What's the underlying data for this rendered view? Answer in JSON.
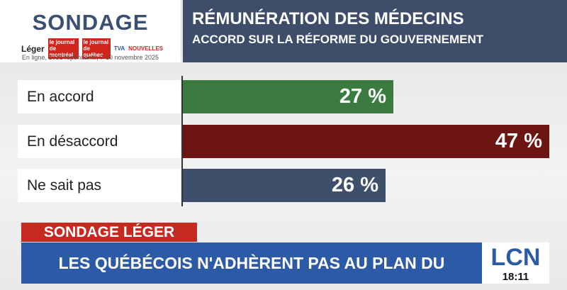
{
  "header": {
    "brand": "SONDAGE",
    "logos": [
      "Léger",
      "le journal de montréal",
      "le journal de québec",
      "TVA",
      "NOUVELLES"
    ],
    "note": "En ligne, 1031 répondants, 7-10 novembre 2025"
  },
  "chart_data": {
    "type": "bar",
    "orientation": "horizontal",
    "title": "RÉMUNÉRATION DES MÉDECINS",
    "subtitle": "ACCORD SUR LA RÉFORME DU GOUVERNEMENT",
    "categories": [
      "En accord",
      "En désaccord",
      "Ne sait pas"
    ],
    "values": [
      27,
      47,
      26
    ],
    "value_labels": [
      "27 %",
      "47 %",
      "26 %"
    ],
    "colors": [
      "#3b7b40",
      "#6d1512",
      "#3e4f6c"
    ]
  },
  "banner": {
    "tag": "SONDAGE LÉGER",
    "headline": "LES QUÉBÉCOIS N'ADHÈRENT PAS AU PLAN DU MINISTRE DUBÉ",
    "channel": "LCN",
    "time": "18:11"
  }
}
